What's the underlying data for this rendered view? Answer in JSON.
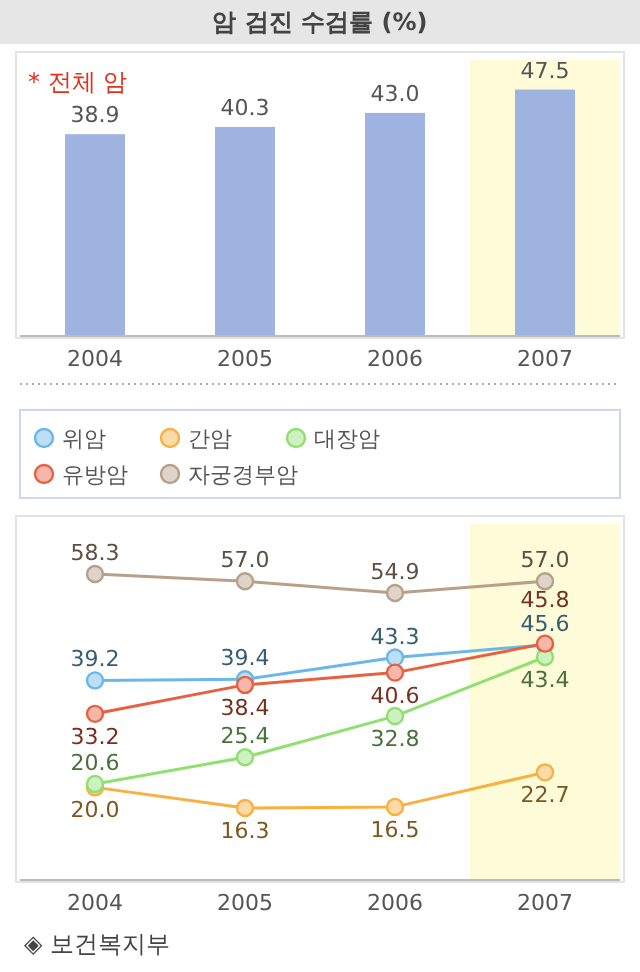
{
  "chart_data": [
    {
      "type": "bar",
      "title": "암 검진 수검률 (%)",
      "categories": [
        "2004",
        "2005",
        "2006",
        "2007"
      ],
      "values": [
        38.9,
        40.3,
        43.0,
        47.5
      ],
      "value_labels": [
        "38.9",
        "40.3",
        "43.0",
        "47.5"
      ],
      "color": "#9fb3e0",
      "bands": [
        {
          "axis": "x",
          "from": "2007",
          "to": "2007",
          "color": "#fdfbd8"
        }
      ],
      "annotations": [
        "* 전체 암"
      ]
    },
    {
      "type": "line",
      "categories": [
        "2004",
        "2005",
        "2006",
        "2007"
      ],
      "marker": "circle",
      "legend": "top",
      "series": [
        {
          "name": "위암",
          "color": "#6ab8e8",
          "values": [
            39.2,
            39.4,
            43.3,
            45.6
          ],
          "value_labels": [
            "39.2",
            "39.4",
            "43.3",
            "45.6"
          ]
        },
        {
          "name": "간암",
          "color": "#f8b040",
          "values": [
            20.0,
            16.3,
            16.5,
            22.7
          ],
          "value_labels": [
            "20.0",
            "16.3",
            "16.5",
            "22.7"
          ]
        },
        {
          "name": "대장암",
          "color": "#90e070",
          "values": [
            20.6,
            25.4,
            32.8,
            43.4
          ],
          "value_labels": [
            "20.6",
            "25.4",
            "32.8",
            "43.4"
          ]
        },
        {
          "name": "유방암",
          "color": "#e86040",
          "values": [
            33.2,
            38.4,
            40.6,
            45.8
          ],
          "value_labels": [
            "33.2",
            "38.4",
            "40.6",
            "45.8"
          ]
        },
        {
          "name": "자궁경부암",
          "color": "#b8a088",
          "values": [
            58.3,
            57.0,
            54.9,
            57.0
          ],
          "value_labels": [
            "58.3",
            "57.0",
            "54.9",
            "57.0"
          ]
        }
      ],
      "bands": [
        {
          "axis": "x",
          "from": "2007",
          "to": "2007",
          "color": "#fdfbd8"
        }
      ],
      "annotations": [
        "◈ 보건복지부"
      ]
    }
  ]
}
